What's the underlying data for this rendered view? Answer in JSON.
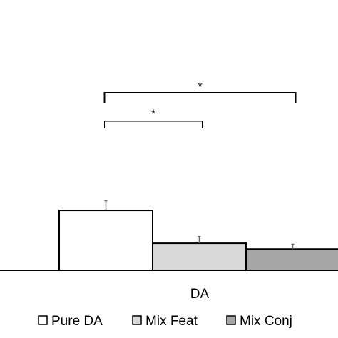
{
  "chart_data": {
    "type": "bar",
    "categories": [
      "DA"
    ],
    "series": [
      {
        "name": "Pure DA",
        "values": [
          0.62
        ],
        "error": [
          0.1
        ],
        "color": "#ffffff"
      },
      {
        "name": "Mix Feat",
        "values": [
          0.28
        ],
        "error": [
          0.07
        ],
        "color": "#d9d9d9"
      },
      {
        "name": "Mix Conj",
        "values": [
          0.22
        ],
        "error": [
          0.05
        ],
        "color": "#a6a6a6"
      }
    ],
    "ylim": [
      0,
      2.8
    ],
    "legend_position": "bottom",
    "significance": [
      {
        "from": "Pure DA",
        "to": "Mix Feat",
        "label": "*"
      },
      {
        "from": "Pure DA",
        "to": "Mix Conj",
        "label": "*"
      }
    ]
  }
}
